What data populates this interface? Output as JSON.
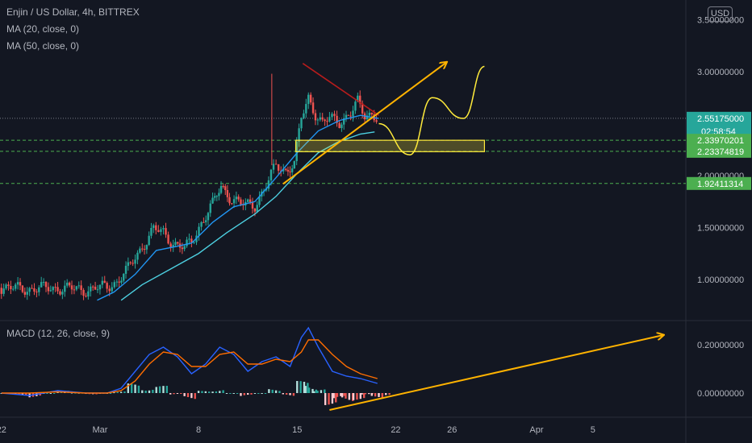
{
  "header": {
    "symbol_line": "Enjin / US Dollar, 4h, BITTREX",
    "ma20_label": "MA (20, close, 0)",
    "ma50_label": "MA (50, close, 0)",
    "macd_label": "MACD (12, 26, close, 9)",
    "currency_button": "USD"
  },
  "price_tags": [
    {
      "label": "2.55175000",
      "sub": "02:58:54",
      "value": 2.55175,
      "color": "#26a69a"
    },
    {
      "label": "2.33970201",
      "value": 2.3397,
      "color": "#4caf50"
    },
    {
      "label": "2.23374819",
      "value": 2.2337,
      "color": "#4caf50"
    },
    {
      "label": "1.92411314",
      "value": 1.9241,
      "color": "#4caf50"
    }
  ],
  "chart_data": [
    {
      "type": "candlestick",
      "title": "Enjin / US Dollar, 4h, BITTREX",
      "yaxis_ticks": [
        "3.50000000",
        "3.00000000",
        "2.50000000",
        "2.00000000",
        "1.50000000",
        "1.00000000"
      ],
      "yaxis_tick_values": [
        3.5,
        3.0,
        2.5,
        2.0,
        1.5,
        1.0
      ],
      "xaxis_ticks": [
        "22",
        "Mar",
        "8",
        "15",
        "22",
        "26",
        "Apr",
        "5"
      ],
      "xaxis_tick_values": [
        -7,
        0,
        7,
        14,
        21,
        25,
        31,
        35
      ],
      "x_unit": "days since Mar 1",
      "xlim": [
        -7.1,
        41.6
      ],
      "ylim": [
        0.8,
        3.6
      ],
      "grid": false,
      "price_closes": [
        [
          -7.0,
          0.92
        ],
        [
          -5.0,
          0.91
        ],
        [
          -3.0,
          0.92
        ],
        [
          -1.0,
          0.9
        ],
        [
          0.5,
          0.93
        ],
        [
          1.2,
          0.98
        ],
        [
          2.0,
          1.1
        ],
        [
          3.0,
          1.32
        ],
        [
          3.8,
          1.48
        ],
        [
          4.5,
          1.45
        ],
        [
          5.2,
          1.35
        ],
        [
          6.0,
          1.3
        ],
        [
          6.5,
          1.36
        ],
        [
          7.2,
          1.55
        ],
        [
          8.0,
          1.72
        ],
        [
          8.6,
          1.9
        ],
        [
          9.2,
          1.8
        ],
        [
          10.0,
          1.72
        ],
        [
          11.0,
          1.72
        ],
        [
          11.8,
          1.9
        ],
        [
          12.5,
          2.1
        ],
        [
          13.2,
          2.05
        ],
        [
          13.8,
          2.12
        ],
        [
          14.3,
          2.55
        ],
        [
          14.8,
          2.75
        ],
        [
          15.3,
          2.6
        ],
        [
          15.8,
          2.5
        ],
        [
          16.3,
          2.55
        ],
        [
          17.0,
          2.52
        ],
        [
          17.8,
          2.6
        ],
        [
          18.3,
          2.7
        ],
        [
          18.8,
          2.58
        ],
        [
          19.3,
          2.6
        ],
        [
          19.8,
          2.55
        ]
      ],
      "ma20_points": [
        [
          -0.2,
          0.8
        ],
        [
          1.0,
          0.88
        ],
        [
          2.5,
          1.05
        ],
        [
          4.0,
          1.28
        ],
        [
          5.5,
          1.32
        ],
        [
          6.5,
          1.35
        ],
        [
          8.0,
          1.55
        ],
        [
          9.5,
          1.7
        ],
        [
          11.0,
          1.75
        ],
        [
          12.5,
          1.98
        ],
        [
          14.0,
          2.22
        ],
        [
          15.5,
          2.43
        ],
        [
          17.0,
          2.53
        ],
        [
          18.5,
          2.58
        ],
        [
          19.8,
          2.55
        ]
      ],
      "ma50_points": [
        [
          1.5,
          0.8
        ],
        [
          3.0,
          0.95
        ],
        [
          5.0,
          1.1
        ],
        [
          7.0,
          1.25
        ],
        [
          9.0,
          1.45
        ],
        [
          11.0,
          1.63
        ],
        [
          12.5,
          1.8
        ],
        [
          14.0,
          2.02
        ],
        [
          15.5,
          2.22
        ],
        [
          17.0,
          2.33
        ],
        [
          18.5,
          2.4
        ],
        [
          19.5,
          2.42
        ]
      ],
      "descending_resistance": [
        [
          14.4,
          3.08
        ],
        [
          19.8,
          2.58
        ]
      ],
      "ascending_trendline": [
        [
          13.0,
          1.92
        ],
        [
          24.6,
          3.09
        ]
      ],
      "support_zone": [
        [
          13.9,
          2.34
        ],
        [
          27.3,
          2.23
        ]
      ],
      "projection_path": [
        [
          19.8,
          2.5
        ],
        [
          22.0,
          2.2
        ],
        [
          23.6,
          2.75
        ],
        [
          25.8,
          2.55
        ],
        [
          27.3,
          3.05
        ]
      ],
      "horizontal_levels": [
        2.55175,
        2.3397,
        2.2337,
        1.9241
      ]
    },
    {
      "type": "line",
      "title": "MACD (12, 26, close, 9)",
      "yaxis_ticks": [
        "0.20000000",
        "0.00000000"
      ],
      "yaxis_tick_values": [
        0.2,
        0.0
      ],
      "ylim": [
        -0.08,
        0.3
      ],
      "series": [
        {
          "name": "MACD",
          "color": "#2962ff",
          "points": [
            [
              -7,
              0
            ],
            [
              -5,
              -0.01
            ],
            [
              -3,
              0.01
            ],
            [
              -1,
              0.0
            ],
            [
              0.5,
              0.0
            ],
            [
              1.5,
              0.02
            ],
            [
              2.5,
              0.09
            ],
            [
              3.5,
              0.16
            ],
            [
              4.5,
              0.19
            ],
            [
              5.5,
              0.15
            ],
            [
              6.5,
              0.08
            ],
            [
              7.5,
              0.12
            ],
            [
              8.5,
              0.19
            ],
            [
              9.5,
              0.16
            ],
            [
              10.5,
              0.09
            ],
            [
              11.5,
              0.13
            ],
            [
              12.5,
              0.15
            ],
            [
              13.5,
              0.11
            ],
            [
              14.3,
              0.23
            ],
            [
              14.8,
              0.27
            ],
            [
              15.5,
              0.19
            ],
            [
              16.5,
              0.09
            ],
            [
              17.5,
              0.07
            ],
            [
              18.5,
              0.06
            ],
            [
              19.7,
              0.04
            ]
          ]
        },
        {
          "name": "Signal",
          "color": "#ff6d00",
          "points": [
            [
              -7,
              0
            ],
            [
              -5,
              0.0
            ],
            [
              -3,
              0.005
            ],
            [
              -1,
              0.0
            ],
            [
              0.5,
              0.0
            ],
            [
              1.5,
              0.01
            ],
            [
              2.5,
              0.05
            ],
            [
              3.5,
              0.12
            ],
            [
              4.5,
              0.17
            ],
            [
              5.5,
              0.16
            ],
            [
              6.5,
              0.11
            ],
            [
              7.5,
              0.11
            ],
            [
              8.5,
              0.16
            ],
            [
              9.5,
              0.17
            ],
            [
              10.5,
              0.12
            ],
            [
              11.5,
              0.12
            ],
            [
              12.5,
              0.14
            ],
            [
              13.5,
              0.13
            ],
            [
              14.3,
              0.17
            ],
            [
              14.8,
              0.22
            ],
            [
              15.5,
              0.22
            ],
            [
              16.5,
              0.16
            ],
            [
              17.5,
              0.11
            ],
            [
              18.5,
              0.08
            ],
            [
              19.7,
              0.06
            ]
          ]
        }
      ],
      "histogram": [
        [
          -7,
          0.0
        ],
        [
          -6,
          -0.01
        ],
        [
          -5,
          -0.02
        ],
        [
          -4,
          0.0
        ],
        [
          -3,
          0.01
        ],
        [
          -2,
          0.005
        ],
        [
          -1,
          -0.005
        ],
        [
          0,
          0.0
        ],
        [
          1,
          0.01
        ],
        [
          2,
          0.04
        ],
        [
          3,
          0.05
        ],
        [
          4,
          0.03
        ],
        [
          5,
          -0.01
        ],
        [
          6,
          -0.03
        ],
        [
          7,
          0.01
        ],
        [
          8,
          0.03
        ],
        [
          9,
          0.0
        ],
        [
          10,
          -0.03
        ],
        [
          11,
          0.0
        ],
        [
          12,
          0.02
        ],
        [
          13,
          -0.02
        ],
        [
          14,
          0.05
        ],
        [
          14.6,
          0.07
        ],
        [
          15.2,
          0.02
        ],
        [
          16,
          -0.05
        ],
        [
          16.6,
          -0.06
        ],
        [
          17.2,
          -0.04
        ],
        [
          18,
          -0.03
        ],
        [
          18.6,
          -0.02
        ],
        [
          19.3,
          -0.02
        ],
        [
          19.8,
          -0.01
        ]
      ],
      "projection_arrow": [
        [
          16.3,
          -0.07
        ],
        [
          40.0,
          0.24
        ]
      ]
    }
  ]
}
